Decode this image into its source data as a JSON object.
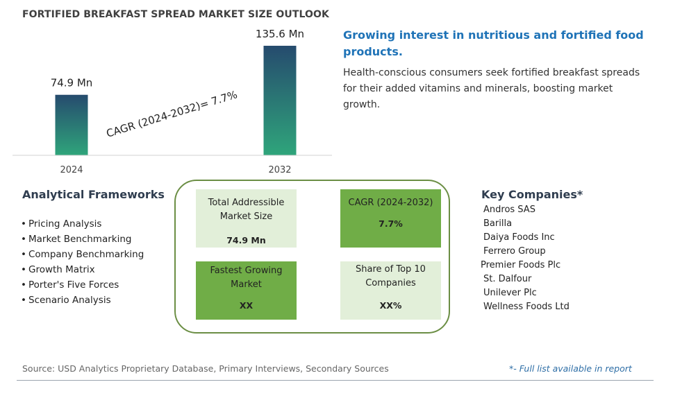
{
  "title": "FORTIFIED BREAKFAST SPREAD MARKET SIZE OUTLOOK",
  "chart_data": {
    "type": "bar",
    "categories": [
      "2024",
      "2032"
    ],
    "values": [
      74.9,
      135.6
    ],
    "value_labels": [
      "74.9 Mn",
      "135.6 Mn"
    ],
    "unit": "Mn",
    "ylim": [
      0,
      135.6
    ],
    "grid": false,
    "annotation": "CAGR (2024-2032)=  7.7%",
    "bar_gradient": [
      "#2fa57b",
      "#264b6e"
    ]
  },
  "headline": "Growing interest in nutritious and fortified food products.",
  "description": "Health-conscious consumers seek fortified breakfast spreads for their added vitamins and minerals, boosting market growth.",
  "analytical_frameworks": {
    "title": "Analytical Frameworks",
    "items": [
      "Pricing Analysis",
      "Market Benchmarking",
      "Company Benchmarking",
      "Growth Matrix",
      "Porter's Five Forces",
      "Scenario Analysis"
    ]
  },
  "summary_cards": {
    "total_addressable": {
      "label": "Total Addressible Market Size",
      "value": "74.9 Mn"
    },
    "cagr": {
      "label": "CAGR (2024-2032)",
      "value": "7.7%"
    },
    "fastest_growing": {
      "label": "Fastest Growing Market",
      "value": "XX"
    },
    "top10_share": {
      "label": "Share of Top 10 Companies",
      "value": "XX%"
    }
  },
  "key_companies": {
    "title": "Key Companies*",
    "items": [
      "Andros SAS",
      "Barilla",
      "Daiya Foods Inc",
      "Ferrero Group",
      "Premier Foods Plc",
      "St. Dalfour",
      "Unilever Plc",
      "Wellness Foods Ltd"
    ]
  },
  "source": "Source: USD Analytics Proprietary Database, Primary Interviews, Secondary Sources",
  "footnote": "*- Full list available in report",
  "colors": {
    "headline": "#1f73b7",
    "card_light": "#e2efd9",
    "card_dark": "#70ad47",
    "box_border": "#6b8e44"
  }
}
